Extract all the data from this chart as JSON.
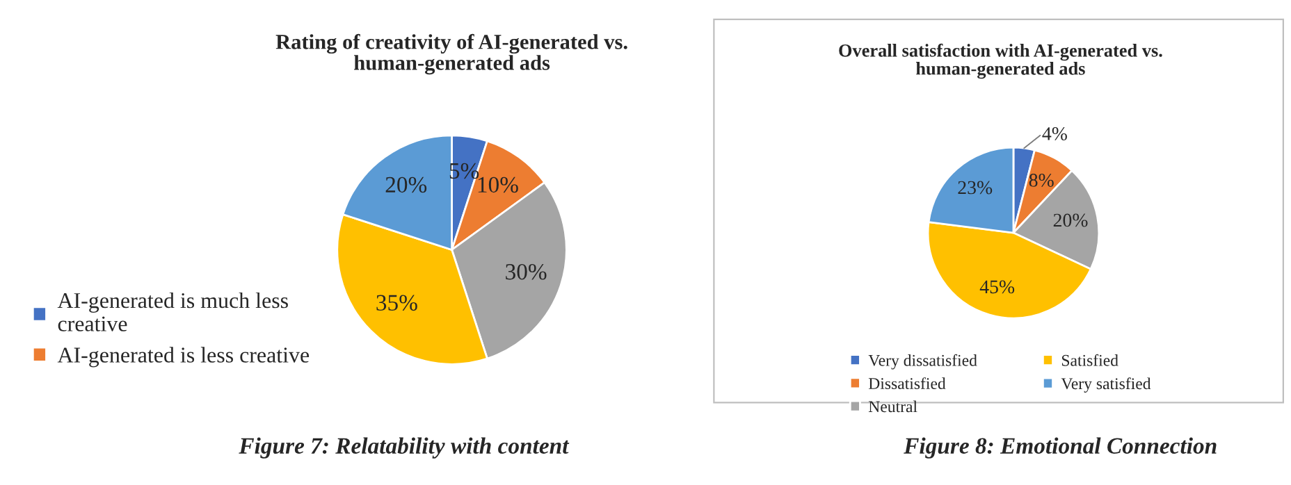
{
  "chart_data": [
    {
      "type": "pie",
      "title": "Rating of creativity of AI-generated vs. human-generated ads",
      "categories": [
        "AI-generated is much less creative",
        "AI-generated is less creative",
        null,
        null,
        null
      ],
      "values": [
        5,
        10,
        30,
        35,
        20
      ],
      "colors": [
        "#4472c4",
        "#ed7d31",
        "#a5a5a5",
        "#ffc000",
        "#5b9bd5"
      ],
      "value_labels": [
        "5%",
        "10%",
        "30%",
        "35%",
        "20%"
      ],
      "legend": "left",
      "annotations": [
        "Figure 7: Relatability with content"
      ]
    },
    {
      "type": "pie",
      "title": "Overall satisfaction with AI-generated vs. human-generated ads",
      "categories": [
        "Very dissatisfied",
        "Dissatisfied",
        "Neutral",
        "Satisfied",
        "Very satisfied"
      ],
      "values": [
        4,
        8,
        20,
        45,
        23
      ],
      "colors": [
        "#4472c4",
        "#ed7d31",
        "#a5a5a5",
        "#ffc000",
        "#5b9bd5"
      ],
      "value_labels": [
        "4%",
        "8%",
        "20%",
        "45%",
        "23%"
      ],
      "legend": "bottom",
      "annotations": [
        "Figure 8: Emotional Connection"
      ]
    }
  ]
}
